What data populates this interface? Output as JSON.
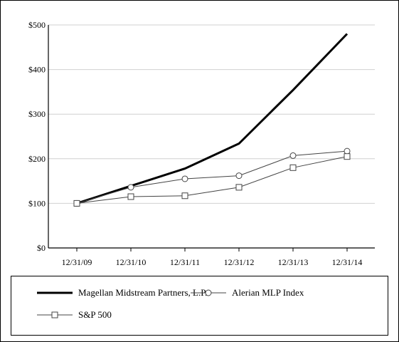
{
  "chart_data": {
    "type": "line",
    "categories": [
      "12/31/09",
      "12/31/10",
      "12/31/11",
      "12/31/12",
      "12/31/13",
      "12/31/14"
    ],
    "y_tick_labels": [
      "$0",
      "$100",
      "$200",
      "$300",
      "$400",
      "$500"
    ],
    "ylim": [
      0,
      500
    ],
    "grid": true,
    "legend_position": "bottom",
    "series": [
      {
        "name": "Magellan Midstream Partners, L.P.",
        "values": [
          100,
          139,
          178,
          234,
          354,
          480
        ],
        "color": "#000000",
        "marker": "none"
      },
      {
        "name": "Alerian MLP Index",
        "values": [
          100,
          136,
          155,
          162,
          207,
          217
        ],
        "color": "#444444",
        "marker": "circle"
      },
      {
        "name": "S&P 500",
        "values": [
          100,
          115,
          117,
          136,
          180,
          205
        ],
        "color": "#444444",
        "marker": "square"
      }
    ]
  }
}
